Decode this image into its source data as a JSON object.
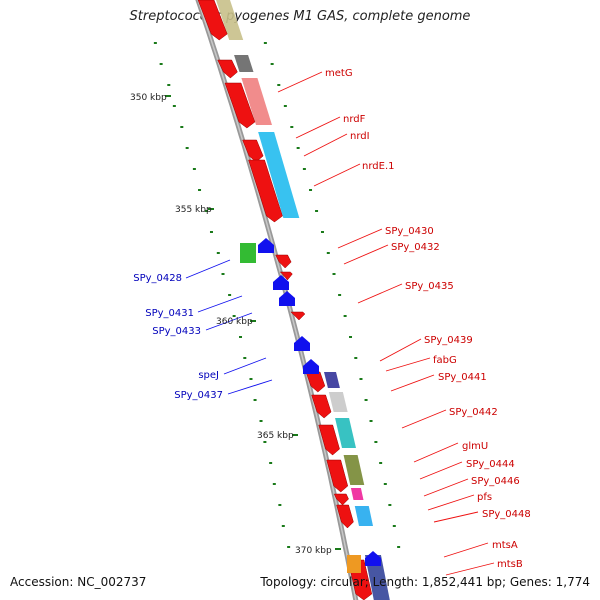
{
  "title": "Streptococcus pyogenes M1 GAS, complete genome",
  "footer": {
    "accession_label": "Accession: NC_002737",
    "topology_label": "Topology: circular; Length: 1,852,441 bp; Genes: 1,774"
  },
  "colors": {
    "forward_strand": "#ee1111",
    "reverse_strand": "#1111ee",
    "backbone": "#999999",
    "tick": "#1a7a1a"
  },
  "scale_labels": [
    "350 kbp",
    "355 kbp",
    "360 kbp",
    "365 kbp",
    "370 kbp"
  ],
  "genes_right": [
    "metG",
    "nrdF",
    "nrdI",
    "nrdE.1",
    "SPy_0430",
    "SPy_0432",
    "SPy_0435",
    "SPy_0439",
    "fabG",
    "SPy_0441",
    "SPy_0442",
    "glmU",
    "SPy_0444",
    "SPy_0446",
    "pfs",
    "SPy_0448",
    "mtsA",
    "mtsB"
  ],
  "genes_left": [
    "SPy_0428",
    "SPy_0431",
    "SPy_0433",
    "speJ",
    "SPy_0437"
  ]
}
